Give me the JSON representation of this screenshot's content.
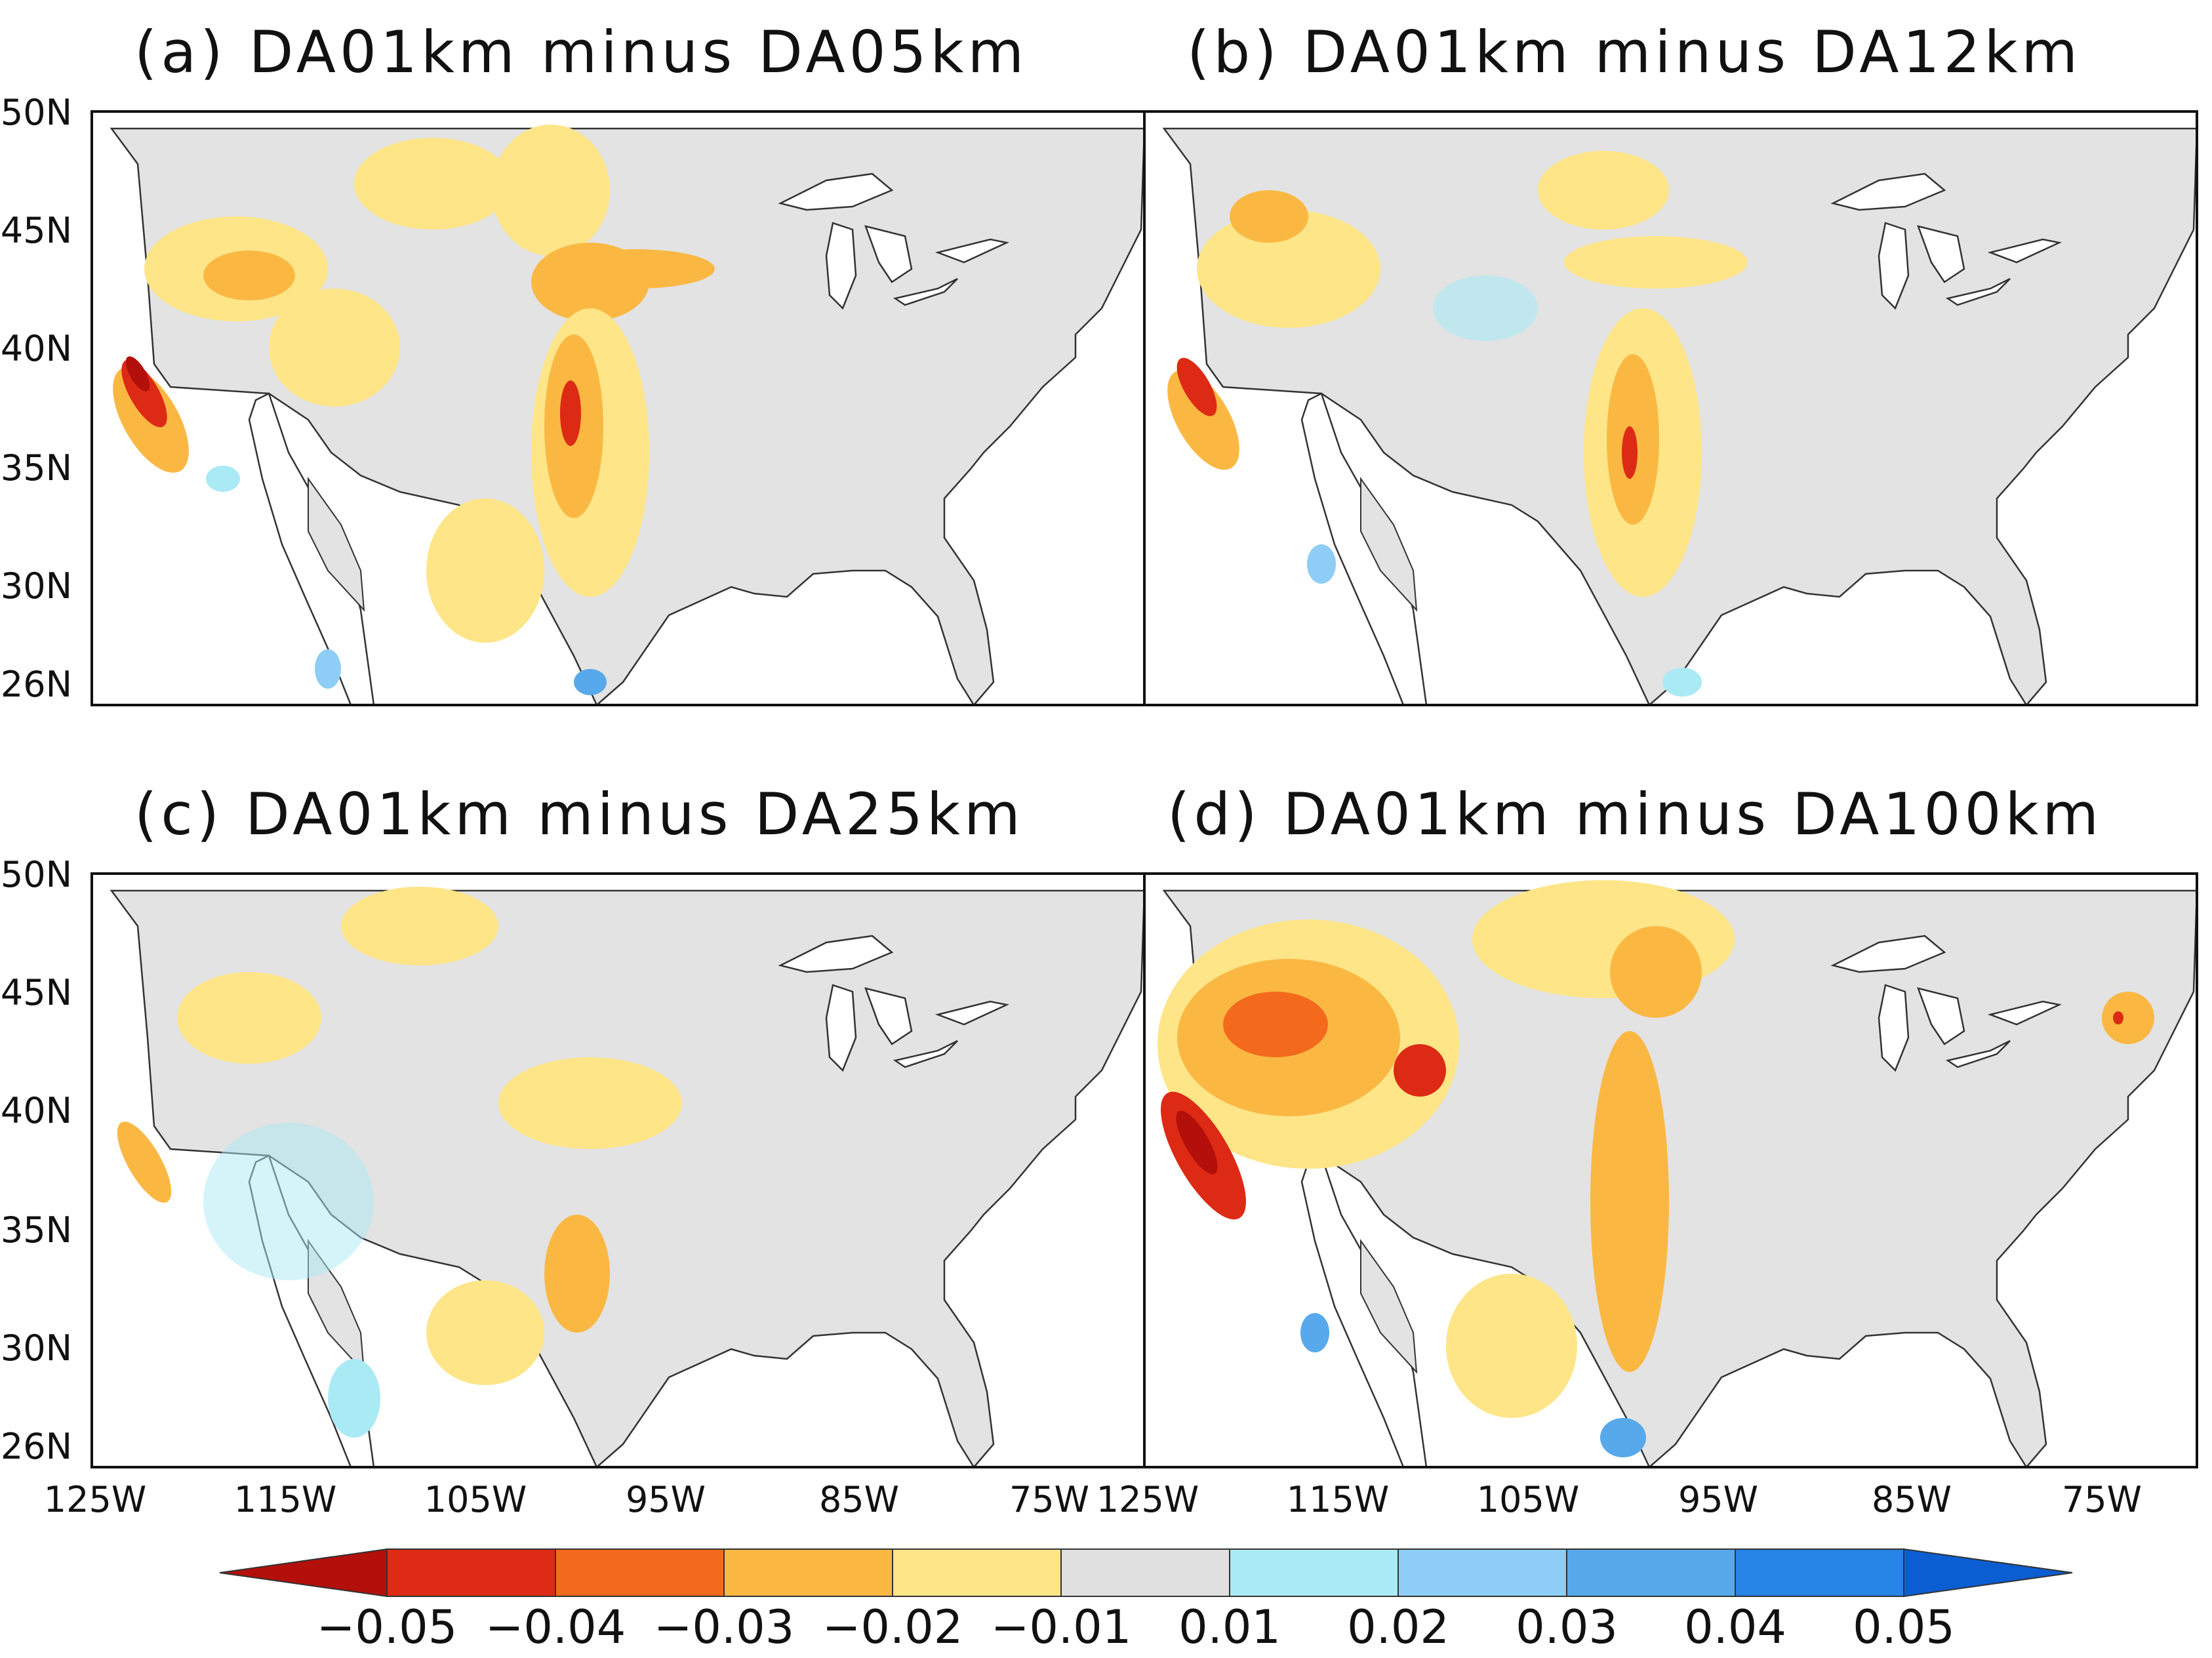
{
  "figure": {
    "panels": [
      {
        "id": "a",
        "title": "(a) DA01km minus DA05km"
      },
      {
        "id": "b",
        "title": "(b) DA01km minus DA12km"
      },
      {
        "id": "c",
        "title": "(c) DA01km minus DA25km"
      },
      {
        "id": "d",
        "title": "(d) DA01km minus DA100km"
      }
    ],
    "lat_ticks": [
      "50N",
      "45N",
      "40N",
      "35N",
      "30N",
      "26N"
    ],
    "lon_ticks": [
      "125W",
      "115W",
      "105W",
      "95W",
      "85W",
      "75W"
    ],
    "colorbar": {
      "labels": [
        "−0.05",
        "−0.04",
        "−0.03",
        "−0.02",
        "−0.01",
        "0.01",
        "0.02",
        "0.03",
        "0.04",
        "0.05"
      ],
      "colors": [
        "#b30f0b",
        "#dd2a14",
        "#f46a1c",
        "#fab843",
        "#fde588",
        "#e0e0e0",
        "#aaeaf5",
        "#8ecdf5",
        "#57a9ec",
        "#2584e6",
        "#0b5ed2"
      ]
    }
  }
}
